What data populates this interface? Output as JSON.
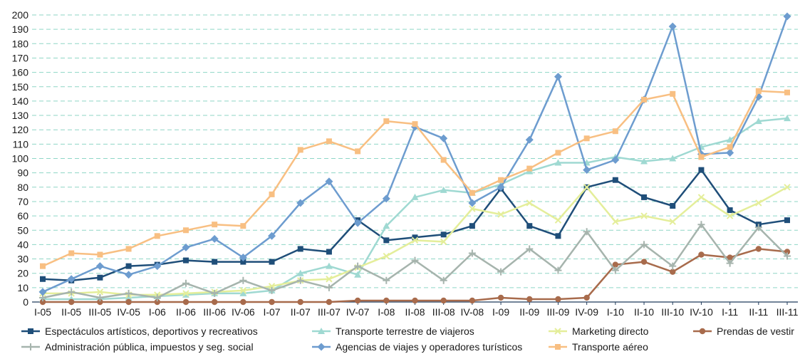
{
  "chart_data": {
    "type": "line",
    "title": "",
    "xlabel": "",
    "ylabel": "",
    "ylim": [
      0,
      200
    ],
    "yticks": [
      0,
      10,
      20,
      30,
      40,
      50,
      60,
      70,
      80,
      90,
      100,
      110,
      120,
      130,
      140,
      150,
      160,
      170,
      180,
      190,
      200
    ],
    "grid": true,
    "legend_position": "bottom",
    "categories": [
      "I-05",
      "II-05",
      "III-05",
      "IV-05",
      "I-06",
      "II-06",
      "III-06",
      "IV-06",
      "I-07",
      "II-07",
      "III-07",
      "IV-07",
      "I-08",
      "II-08",
      "III-08",
      "IV-08",
      "I-09",
      "II-09",
      "III-09",
      "IV-09",
      "I-10",
      "II-10",
      "III-10",
      "IV-10",
      "I-11",
      "II-11",
      "III-11"
    ],
    "series": [
      {
        "name": "Espectáculos artísticos, deportivos y recreativos",
        "color": "#1f4e79",
        "marker": "square",
        "values": [
          16,
          15,
          17,
          25,
          26,
          29,
          28,
          28,
          28,
          37,
          35,
          57,
          43,
          45,
          47,
          53,
          79,
          53,
          46,
          80,
          85,
          73,
          67,
          92,
          64,
          54,
          57
        ]
      },
      {
        "name": "Transporte terrestre de viajeros",
        "color": "#9fd9d2",
        "marker": "triangle",
        "values": [
          2,
          2,
          2,
          3,
          4,
          5,
          6,
          6,
          8,
          20,
          25,
          19,
          53,
          73,
          78,
          76,
          82,
          91,
          97,
          97,
          101,
          98,
          100,
          108,
          113,
          126,
          128
        ]
      },
      {
        "name": "Marketing directo",
        "color": "#e4ee9a",
        "marker": "cross",
        "values": [
          6,
          6,
          7,
          5,
          5,
          6,
          7,
          8,
          11,
          15,
          16,
          24,
          32,
          43,
          42,
          65,
          61,
          69,
          57,
          80,
          56,
          60,
          56,
          73,
          60,
          69,
          80
        ]
      },
      {
        "name": "Prendas de vestir",
        "color": "#a86b4c",
        "marker": "circle",
        "values": [
          0,
          0,
          0,
          0,
          0,
          0,
          0,
          0,
          0,
          0,
          0,
          1,
          1,
          1,
          1,
          1,
          3,
          2,
          2,
          3,
          26,
          28,
          21,
          33,
          31,
          37,
          35
        ]
      },
      {
        "name": "Administración pública, impuestos y seg. social",
        "color": "#a6b4ad",
        "marker": "plus",
        "values": [
          3,
          7,
          3,
          6,
          3,
          13,
          6,
          15,
          8,
          15,
          10,
          25,
          15,
          29,
          15,
          34,
          21,
          37,
          22,
          49,
          22,
          40,
          25,
          54,
          27,
          52,
          32
        ]
      },
      {
        "name": "Agencias de viajes y operadores turísticos",
        "color": "#6d9ccf",
        "marker": "diamond",
        "values": [
          7,
          16,
          25,
          19,
          25,
          38,
          44,
          31,
          46,
          69,
          84,
          55,
          72,
          122,
          114,
          69,
          80,
          113,
          157,
          92,
          99,
          141,
          192,
          103,
          104,
          143,
          199
        ]
      },
      {
        "name": "Transporte aéreo",
        "color": "#f8bf82",
        "marker": "square",
        "values": [
          25,
          34,
          33,
          37,
          46,
          50,
          54,
          53,
          75,
          106,
          112,
          105,
          126,
          124,
          99,
          76,
          85,
          93,
          104,
          114,
          119,
          141,
          145,
          101,
          108,
          147,
          146
        ]
      }
    ]
  }
}
